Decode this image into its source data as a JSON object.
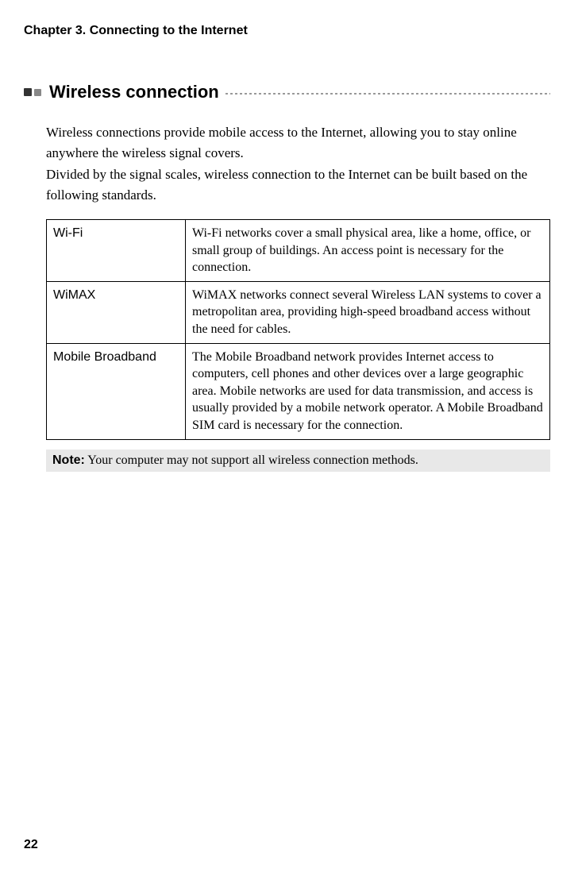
{
  "chapter_header": "Chapter 3. Connecting to the Internet",
  "section_title": "Wireless connection",
  "intro_para1": "Wireless connections provide mobile access to the Internet, allowing you to stay online anywhere the wireless signal covers.",
  "intro_para2": "Divided by the signal scales, wireless connection to the Internet can be built based on the following standards.",
  "table": {
    "rows": [
      {
        "label": "Wi-Fi",
        "desc": "Wi-Fi networks cover a small physical area, like a home, office, or small group of buildings. An access point is necessary for the connection."
      },
      {
        "label": "WiMAX",
        "desc": "WiMAX networks connect several Wireless LAN systems to cover a metropolitan area, providing high-speed broadband access without the need for cables."
      },
      {
        "label": "Mobile Broadband",
        "desc": "The Mobile Broadband network provides Internet access to computers, cell phones and other devices over a large geographic area. Mobile networks are used for data transmission, and access is usually provided by a mobile network operator. A Mobile Broadband SIM card is necessary for the connection."
      }
    ]
  },
  "note_label": "Note:",
  "note_text": " Your computer may not support all wireless connection methods.",
  "page_number": "22"
}
